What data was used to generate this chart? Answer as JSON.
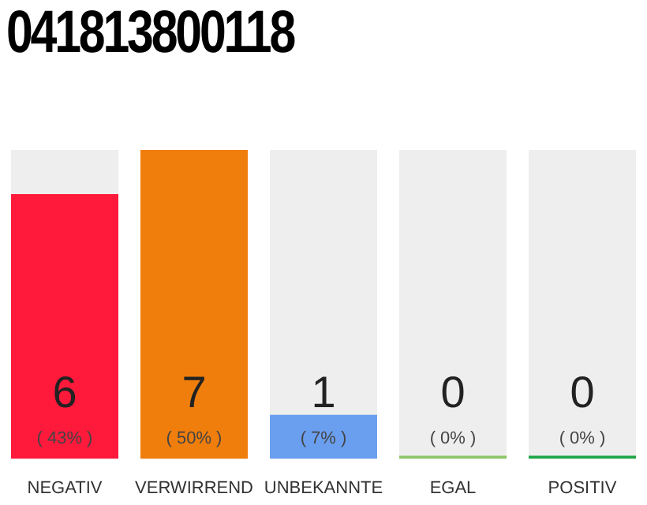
{
  "chart_data": {
    "type": "bar",
    "title": "041813800118",
    "categories": [
      "NEGATIV",
      "VERWIRREND",
      "UNBEKANNTE",
      "EGAL",
      "POSITIV"
    ],
    "values": [
      6,
      7,
      1,
      0,
      0
    ],
    "colors": [
      "#ff1a3c",
      "#f07e0c",
      "#6a9ff0",
      "#8dc86a",
      "#22a84a"
    ],
    "value_labels": [
      "6",
      "7",
      "1",
      "0",
      "0"
    ],
    "annotations": [
      "( 43% )",
      "( 50% )",
      "( 7% )",
      "( 0% )",
      "( 0% )"
    ],
    "grid": false,
    "legend": false
  }
}
